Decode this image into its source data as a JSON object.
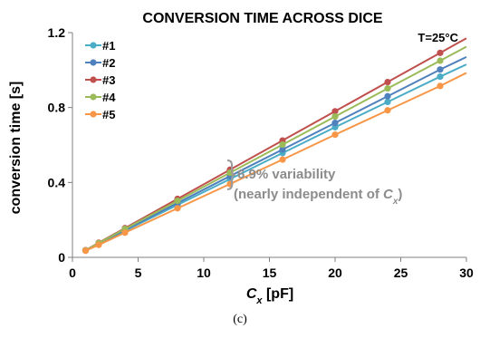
{
  "chart_data": {
    "type": "line",
    "title": "CONVERSION TIME ACROSS DICE",
    "xlabel_var": "C",
    "xlabel_sub": "x",
    "xlabel_unit": " [pF]",
    "ylabel": "conversion time [s]",
    "xlim": [
      0,
      30
    ],
    "ylim": [
      0,
      1.2
    ],
    "xticks": [
      "0",
      "5",
      "10",
      "15",
      "20",
      "25",
      "30"
    ],
    "yticks": [
      "0",
      "0.4",
      "0.8",
      "1.2"
    ],
    "xtick_values": [
      0,
      5,
      10,
      15,
      20,
      25,
      30
    ],
    "ytick_values": [
      0,
      0.4,
      0.8,
      1.2
    ],
    "legend_position": "top-left",
    "x": [
      1,
      2,
      4,
      8,
      12,
      16,
      20,
      24,
      28
    ],
    "series": [
      {
        "name": "#1",
        "color": "#4bacc6",
        "values": [
          0.037,
          0.072,
          0.142,
          0.28,
          0.418,
          0.557,
          0.695,
          0.83,
          0.965
        ],
        "end": 1.03
      },
      {
        "name": "#2",
        "color": "#4f81bd",
        "values": [
          0.037,
          0.073,
          0.146,
          0.29,
          0.434,
          0.576,
          0.718,
          0.86,
          1.003
        ],
        "end": 1.07
      },
      {
        "name": "#3",
        "color": "#c0504d",
        "values": [
          0.038,
          0.078,
          0.156,
          0.312,
          0.468,
          0.624,
          0.78,
          0.936,
          1.092
        ],
        "end": 1.17
      },
      {
        "name": "#4",
        "color": "#9bbb59",
        "values": [
          0.037,
          0.076,
          0.152,
          0.302,
          0.452,
          0.602,
          0.752,
          0.902,
          1.05
        ],
        "end": 1.125
      },
      {
        "name": "#5",
        "color": "#f79646",
        "values": [
          0.035,
          0.067,
          0.132,
          0.262,
          0.392,
          0.522,
          0.655,
          0.785,
          0.915
        ],
        "end": 0.985
      }
    ],
    "condition": "T=25°C",
    "annotation_line1": "6.9% variability",
    "annotation_line2_prefix": "(nearly independent of ",
    "annotation_line2_var": "C",
    "annotation_line2_sub": "x",
    "annotation_line2_suffix": ")",
    "grid": false
  },
  "caption": "(c)"
}
